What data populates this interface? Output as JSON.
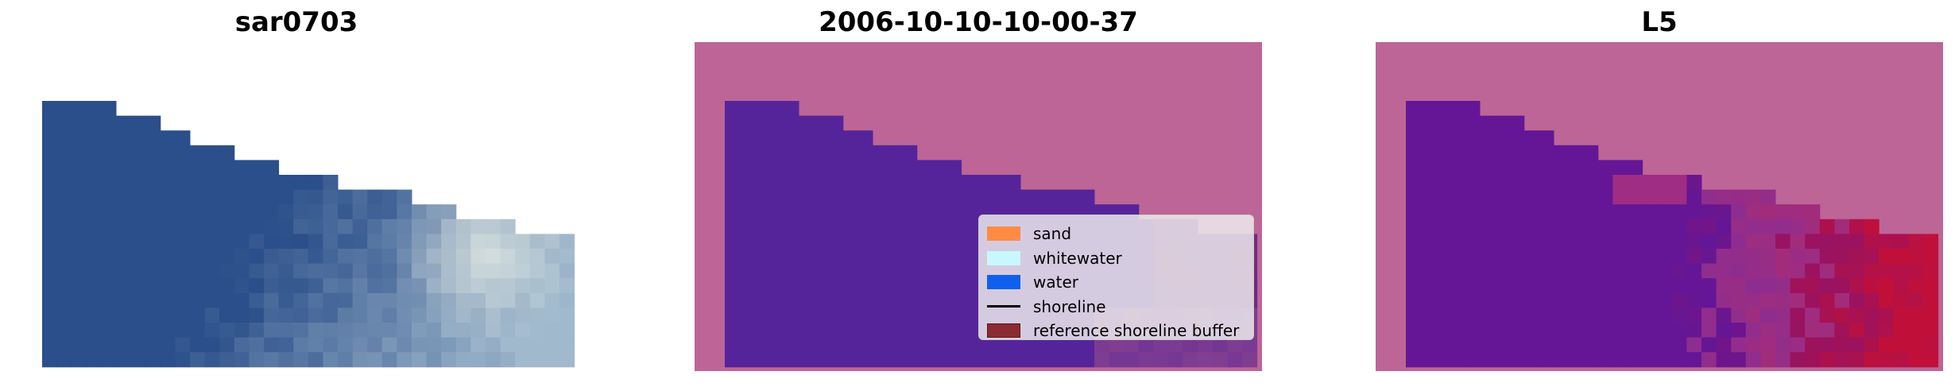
{
  "panels": [
    {
      "title": "sar0703"
    },
    {
      "title": "2006-10-10-10-00-37"
    },
    {
      "title": "L5"
    }
  ],
  "legend": {
    "items": [
      {
        "label": "sand",
        "color": "#ff8c42",
        "kind": "patch"
      },
      {
        "label": "whitewater",
        "color": "#c8f8ff",
        "kind": "patch"
      },
      {
        "label": "water",
        "color": "#1060f0",
        "kind": "patch"
      },
      {
        "label": "shoreline",
        "color": "#000000",
        "kind": "line"
      },
      {
        "label": "reference shoreline buffer",
        "color": "#8b2a30",
        "kind": "patch"
      }
    ]
  },
  "colors": {
    "buffer_overlay": "#bd6596",
    "water_class": "#55249a",
    "rgb_water": "#2b4f8a",
    "l5_red": "#c0103a",
    "l5_purple": "#6b1a9a"
  }
}
